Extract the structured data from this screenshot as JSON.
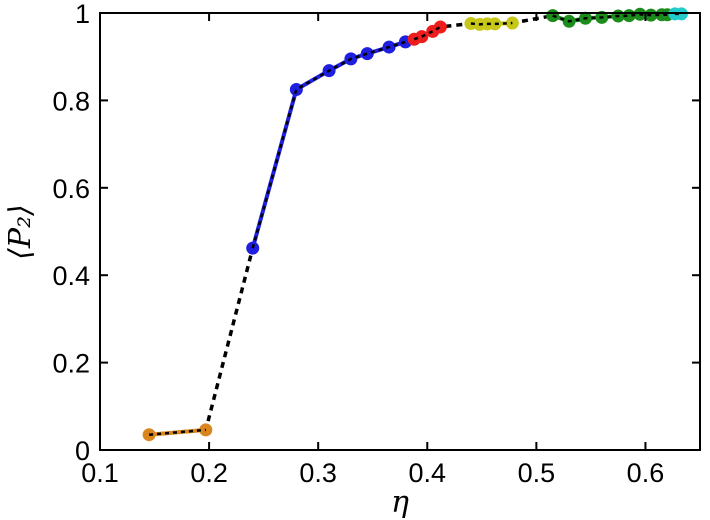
{
  "chart_data": {
    "type": "scatter",
    "xlabel": "η",
    "ylabel": "⟨P₂⟩",
    "xlim": [
      0.1,
      0.65
    ],
    "ylim": [
      0,
      1
    ],
    "grid": false,
    "x_ticks": [
      "0.1",
      "0.2",
      "0.3",
      "0.4",
      "0.5",
      "0.6"
    ],
    "x_tick_values": [
      0.1,
      0.2,
      0.3,
      0.4,
      0.5,
      0.6
    ],
    "y_ticks": [
      "0",
      "0.2",
      "0.4",
      "0.6",
      "0.8",
      "1"
    ],
    "y_tick_values": [
      0,
      0.2,
      0.4,
      0.6,
      0.8,
      1.0
    ],
    "trend": {
      "style": "dotted",
      "color": "#000000",
      "points": [
        [
          0.145,
          0.035
        ],
        [
          0.197,
          0.046
        ],
        [
          0.24,
          0.462
        ],
        [
          0.28,
          0.825
        ],
        [
          0.31,
          0.868
        ],
        [
          0.33,
          0.895
        ],
        [
          0.345,
          0.907
        ],
        [
          0.365,
          0.922
        ],
        [
          0.38,
          0.934
        ],
        [
          0.395,
          0.946
        ],
        [
          0.412,
          0.968
        ],
        [
          0.44,
          0.976
        ],
        [
          0.455,
          0.975
        ],
        [
          0.478,
          0.977
        ],
        [
          0.515,
          0.994
        ],
        [
          0.53,
          0.981
        ],
        [
          0.56,
          0.99
        ],
        [
          0.595,
          0.997
        ],
        [
          0.615,
          0.996
        ],
        [
          0.63,
          0.998
        ]
      ]
    },
    "series": [
      {
        "color": "#d9861f",
        "points": [
          [
            0.145,
            0.035
          ],
          [
            0.197,
            0.046
          ]
        ]
      },
      {
        "color": "#1f1fe0",
        "points": [
          [
            0.24,
            0.462
          ],
          [
            0.28,
            0.825
          ],
          [
            0.31,
            0.868
          ],
          [
            0.33,
            0.895
          ],
          [
            0.345,
            0.907
          ],
          [
            0.365,
            0.922
          ],
          [
            0.38,
            0.934
          ]
        ]
      },
      {
        "color": "#ee1c1c",
        "points": [
          [
            0.388,
            0.94
          ],
          [
            0.395,
            0.946
          ],
          [
            0.405,
            0.958
          ],
          [
            0.412,
            0.968
          ]
        ]
      },
      {
        "color": "#c7c71a",
        "points": [
          [
            0.44,
            0.976
          ],
          [
            0.448,
            0.974
          ],
          [
            0.455,
            0.975
          ],
          [
            0.462,
            0.975
          ],
          [
            0.478,
            0.977
          ]
        ]
      },
      {
        "color": "#1c8c1c",
        "points": [
          [
            0.515,
            0.994
          ],
          [
            0.53,
            0.981
          ],
          [
            0.545,
            0.988
          ],
          [
            0.56,
            0.99
          ],
          [
            0.575,
            0.993
          ],
          [
            0.585,
            0.994
          ],
          [
            0.595,
            0.997
          ],
          [
            0.605,
            0.995
          ],
          [
            0.615,
            0.996
          ],
          [
            0.62,
            0.996
          ]
        ]
      },
      {
        "color": "#22cccc",
        "points": [
          [
            0.627,
            0.998
          ],
          [
            0.633,
            0.998
          ]
        ]
      }
    ]
  }
}
